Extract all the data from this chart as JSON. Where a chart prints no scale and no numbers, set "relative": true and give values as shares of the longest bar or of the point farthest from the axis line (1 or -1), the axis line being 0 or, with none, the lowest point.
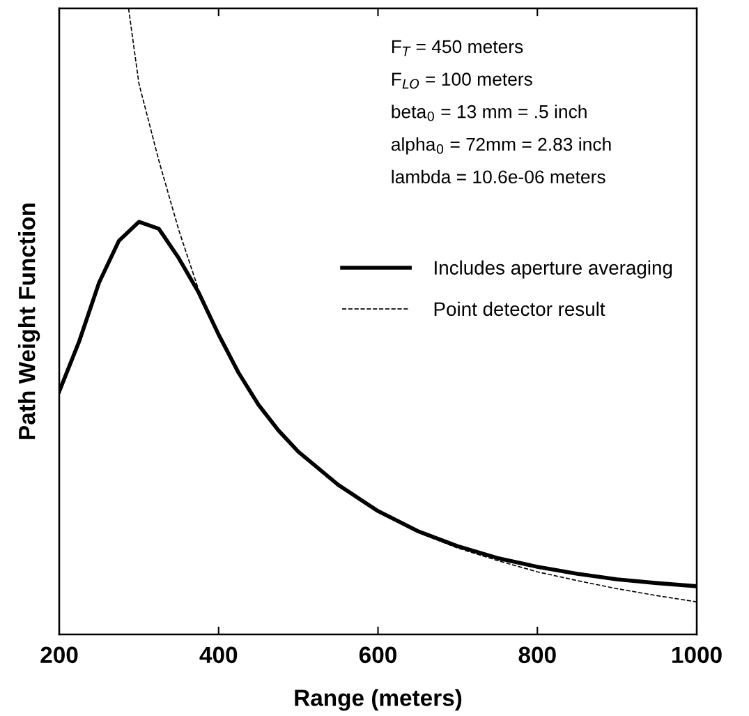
{
  "chart_data": {
    "type": "line",
    "relative": true,
    "xlabel": "Range (meters)",
    "ylabel": "Path Weight Function",
    "xlim": [
      200,
      1000
    ],
    "xticks": [
      200,
      400,
      600,
      800,
      1000
    ],
    "legend": "right",
    "grid": false,
    "annotations": [
      "F$_{T}$ = 450 meters",
      "F$_{LO}$ = 100 meters",
      "beta$_{0}$ = 13 mm = .5 inch",
      "alpha$_{0}$ = 72mm = 2.83 inch",
      "lambda = 10.6e-06 meters"
    ],
    "series": [
      {
        "name": "Includes aperture averaging",
        "color": "#000000",
        "line_style": "solid",
        "x": [
          200,
          225,
          250,
          275,
          300,
          325,
          350,
          375,
          400,
          425,
          450,
          475,
          500,
          550,
          600,
          650,
          700,
          750,
          800,
          850,
          900,
          950,
          1000
        ],
        "values": [
          0.388,
          0.468,
          0.562,
          0.629,
          0.659,
          0.648,
          0.601,
          0.546,
          0.479,
          0.418,
          0.367,
          0.326,
          0.292,
          0.239,
          0.197,
          0.165,
          0.141,
          0.122,
          0.108,
          0.097,
          0.088,
          0.082,
          0.077
        ]
      },
      {
        "name": "Point detector result",
        "color": "#000000",
        "line_style": "dashed",
        "x": [
          287,
          300,
          325,
          350,
          375,
          400,
          425,
          450,
          475,
          500,
          550,
          600,
          650,
          700,
          750,
          800,
          850,
          900,
          950,
          1000
        ],
        "values": [
          1.0,
          0.88,
          0.757,
          0.646,
          0.55,
          0.479,
          0.418,
          0.367,
          0.326,
          0.292,
          0.239,
          0.197,
          0.163,
          0.138,
          0.118,
          0.1,
          0.086,
          0.073,
          0.062,
          0.052
        ]
      }
    ]
  }
}
